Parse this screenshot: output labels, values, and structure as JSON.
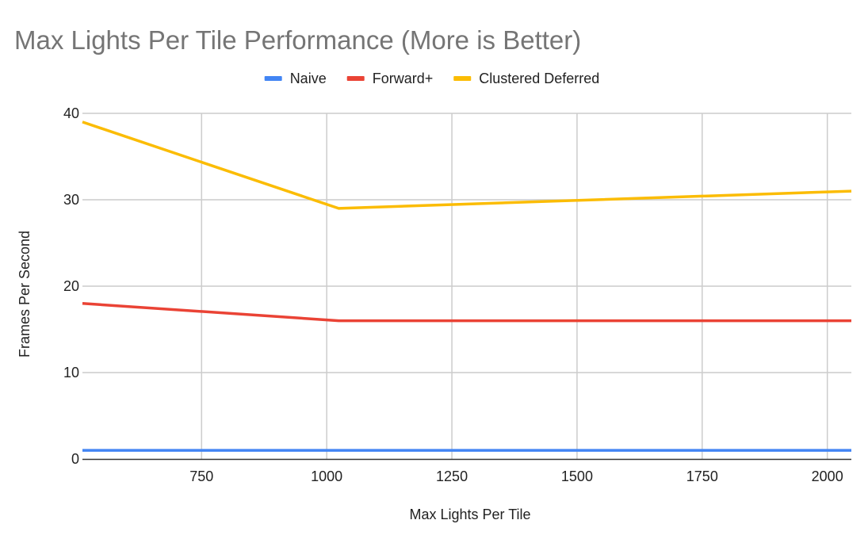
{
  "chart_data": {
    "type": "line",
    "title": "Max Lights Per Tile Performance (More is Better)",
    "xlabel": "Max Lights Per Tile",
    "ylabel": "Frames Per Second",
    "xlim": [
      512,
      2048
    ],
    "ylim": [
      0,
      40
    ],
    "x_ticks": [
      750,
      1000,
      1250,
      1500,
      1750,
      2000
    ],
    "y_ticks": [
      0,
      10,
      20,
      30,
      40
    ],
    "grid": true,
    "legend_position": "top",
    "series": [
      {
        "name": "Naive",
        "color": "#4285f4",
        "points": [
          [
            512,
            1
          ],
          [
            1024,
            1
          ],
          [
            2048,
            1
          ]
        ]
      },
      {
        "name": "Forward+",
        "color": "#ea4335",
        "points": [
          [
            512,
            18
          ],
          [
            1024,
            16
          ],
          [
            2048,
            16
          ]
        ]
      },
      {
        "name": "Clustered Deferred",
        "color": "#fbbc04",
        "points": [
          [
            512,
            39
          ],
          [
            1024,
            29
          ],
          [
            2048,
            31
          ]
        ]
      }
    ]
  }
}
